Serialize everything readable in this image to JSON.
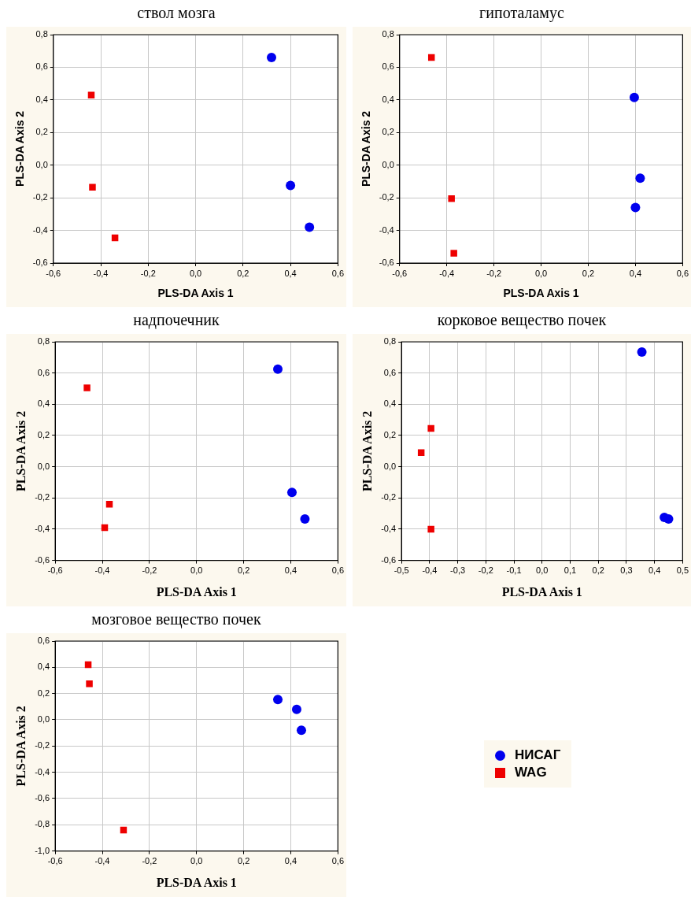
{
  "chart_data": [
    {
      "type": "scatter",
      "title": "ствол мозга",
      "xlabel": "PLS-DA Axis 1",
      "ylabel": "PLS-DA Axis 2",
      "xlim": [
        -0.6,
        0.6
      ],
      "ylim": [
        -0.6,
        0.8
      ],
      "xticks": [
        {
          "value": -0.6,
          "label": "-0,6"
        },
        {
          "value": -0.4,
          "label": "-0,4"
        },
        {
          "value": -0.2,
          "label": "-0,2"
        },
        {
          "value": 0,
          "label": "0,0"
        },
        {
          "value": 0.2,
          "label": "0,2"
        },
        {
          "value": 0.4,
          "label": "0,4"
        },
        {
          "value": 0.6,
          "label": "0,6"
        }
      ],
      "yticks": [
        {
          "value": -0.6,
          "label": "-0,6"
        },
        {
          "value": -0.4,
          "label": "-0,4"
        },
        {
          "value": -0.2,
          "label": "-0,2"
        },
        {
          "value": 0,
          "label": "0,0"
        },
        {
          "value": 0.2,
          "label": "0,2"
        },
        {
          "value": 0.4,
          "label": "0,4"
        },
        {
          "value": 0.6,
          "label": "0,6"
        },
        {
          "value": 0.8,
          "label": "0,8"
        }
      ],
      "grid": true,
      "series": [
        {
          "color": "#0000ee",
          "marker": "circle",
          "x": [
            0.32,
            0.4,
            0.48
          ],
          "values": [
            0.66,
            -0.125,
            -0.38
          ]
        },
        {
          "color": "#ee0000",
          "marker": "square",
          "x": [
            -0.44,
            -0.435,
            -0.34
          ],
          "values": [
            0.43,
            -0.135,
            -0.445
          ]
        }
      ]
    },
    {
      "type": "scatter",
      "title": "гипоталамус",
      "xlabel": "PLS-DA Axis 1",
      "ylabel": "PLS-DA Axis 2",
      "xlim": [
        -0.6,
        0.6
      ],
      "ylim": [
        -0.6,
        0.8
      ],
      "xticks": [
        {
          "value": -0.6,
          "label": "-0,6"
        },
        {
          "value": -0.4,
          "label": "-0,4"
        },
        {
          "value": -0.2,
          "label": "-0,2"
        },
        {
          "value": 0,
          "label": "0,0"
        },
        {
          "value": 0.2,
          "label": "0,2"
        },
        {
          "value": 0.4,
          "label": "0,4"
        },
        {
          "value": 0.6,
          "label": "0,6"
        }
      ],
      "yticks": [
        {
          "value": -0.6,
          "label": "-0,6"
        },
        {
          "value": -0.4,
          "label": "-0,4"
        },
        {
          "value": -0.2,
          "label": "-0,2"
        },
        {
          "value": 0,
          "label": "0,0"
        },
        {
          "value": 0.2,
          "label": "0,2"
        },
        {
          "value": 0.4,
          "label": "0,4"
        },
        {
          "value": 0.6,
          "label": "0,6"
        },
        {
          "value": 0.8,
          "label": "0,8"
        }
      ],
      "grid": true,
      "series": [
        {
          "color": "#0000ee",
          "marker": "circle",
          "x": [
            0.395,
            0.42,
            0.4
          ],
          "values": [
            0.415,
            -0.08,
            -0.26
          ]
        },
        {
          "color": "#ee0000",
          "marker": "square",
          "x": [
            -0.465,
            -0.38,
            -0.37
          ],
          "values": [
            0.66,
            -0.205,
            -0.54
          ]
        }
      ]
    },
    {
      "type": "scatter",
      "title": "надпочечник",
      "xlabel": "PLS-DA Axis 1",
      "ylabel": "PLS-DA Axis 2",
      "xlim": [
        -0.6,
        0.6
      ],
      "ylim": [
        -0.6,
        0.8
      ],
      "xticks": [
        {
          "value": -0.6,
          "label": "-0,6"
        },
        {
          "value": -0.4,
          "label": "-0,4"
        },
        {
          "value": -0.2,
          "label": "-0,2"
        },
        {
          "value": 0,
          "label": "0,0"
        },
        {
          "value": 0.2,
          "label": "0,2"
        },
        {
          "value": 0.4,
          "label": "0,4"
        },
        {
          "value": 0.6,
          "label": "0,6"
        }
      ],
      "yticks": [
        {
          "value": -0.6,
          "label": "-0,6"
        },
        {
          "value": -0.4,
          "label": "-0,4"
        },
        {
          "value": -0.2,
          "label": "-0,2"
        },
        {
          "value": 0,
          "label": "0,0"
        },
        {
          "value": 0.2,
          "label": "0,2"
        },
        {
          "value": 0.4,
          "label": "0,4"
        },
        {
          "value": 0.6,
          "label": "0,6"
        },
        {
          "value": 0.8,
          "label": "0,8"
        }
      ],
      "grid": true,
      "series": [
        {
          "color": "#0000ee",
          "marker": "circle",
          "x": [
            0.345,
            0.405,
            0.46
          ],
          "values": [
            0.625,
            -0.165,
            -0.335
          ]
        },
        {
          "color": "#ee0000",
          "marker": "square",
          "x": [
            -0.465,
            -0.37,
            -0.39
          ],
          "values": [
            0.505,
            -0.24,
            -0.39
          ]
        }
      ]
    },
    {
      "type": "scatter",
      "title": "корковое вещество почек",
      "xlabel": "PLS-DA Axis 1",
      "ylabel": "PLS-DA Axis 2",
      "xlim": [
        -0.5,
        0.5
      ],
      "ylim": [
        -0.6,
        0.8
      ],
      "xticks": [
        {
          "value": -0.5,
          "label": "-0,5"
        },
        {
          "value": -0.4,
          "label": "-0,4"
        },
        {
          "value": -0.3,
          "label": "-0,3"
        },
        {
          "value": -0.2,
          "label": "-0,2"
        },
        {
          "value": -0.1,
          "label": "-0,1"
        },
        {
          "value": 0,
          "label": "0,0"
        },
        {
          "value": 0.1,
          "label": "0,1"
        },
        {
          "value": 0.2,
          "label": "0,2"
        },
        {
          "value": 0.3,
          "label": "0,3"
        },
        {
          "value": 0.4,
          "label": "0,4"
        },
        {
          "value": 0.5,
          "label": "0,5"
        }
      ],
      "yticks": [
        {
          "value": -0.6,
          "label": "-0,6"
        },
        {
          "value": -0.4,
          "label": "-0,4"
        },
        {
          "value": -0.2,
          "label": "-0,2"
        },
        {
          "value": 0,
          "label": "0,0"
        },
        {
          "value": 0.2,
          "label": "0,2"
        },
        {
          "value": 0.4,
          "label": "0,4"
        },
        {
          "value": 0.6,
          "label": "0,6"
        },
        {
          "value": 0.8,
          "label": "0,8"
        }
      ],
      "grid": true,
      "series": [
        {
          "color": "#0000ee",
          "marker": "circle",
          "x": [
            0.355,
            0.435,
            0.45
          ],
          "values": [
            0.735,
            -0.325,
            -0.335
          ]
        },
        {
          "color": "#ee0000",
          "marker": "square",
          "x": [
            -0.43,
            -0.395,
            -0.395
          ],
          "values": [
            0.09,
            0.245,
            -0.4
          ]
        }
      ]
    },
    {
      "type": "scatter",
      "title": "мозговое вещество почек",
      "xlabel": "PLS-DA Axis 1",
      "ylabel": "PLS-DA Axis 2",
      "xlim": [
        -0.6,
        0.6
      ],
      "ylim": [
        -1.0,
        0.6
      ],
      "xticks": [
        {
          "value": -0.6,
          "label": "-0,6"
        },
        {
          "value": -0.4,
          "label": "-0,4"
        },
        {
          "value": -0.2,
          "label": "-0,2"
        },
        {
          "value": 0,
          "label": "0,0"
        },
        {
          "value": 0.2,
          "label": "0,2"
        },
        {
          "value": 0.4,
          "label": "0,4"
        },
        {
          "value": 0.6,
          "label": "0,6"
        }
      ],
      "yticks": [
        {
          "value": -1.0,
          "label": "-1,0"
        },
        {
          "value": -0.8,
          "label": "-0,8"
        },
        {
          "value": -0.6,
          "label": "-0,6"
        },
        {
          "value": -0.4,
          "label": "-0,4"
        },
        {
          "value": -0.2,
          "label": "-0,2"
        },
        {
          "value": 0,
          "label": "0,0"
        },
        {
          "value": 0.2,
          "label": "0,2"
        },
        {
          "value": 0.4,
          "label": "0,4"
        },
        {
          "value": 0.6,
          "label": "0,6"
        }
      ],
      "grid": true,
      "legend": "right",
      "series": [
        {
          "name": "НИСАГ",
          "color": "#0000ee",
          "marker": "circle",
          "x": [
            0.345,
            0.425,
            0.445
          ],
          "values": [
            0.155,
            0.08,
            -0.08
          ]
        },
        {
          "name": "WAG",
          "color": "#ee0000",
          "marker": "square",
          "x": [
            -0.46,
            -0.455,
            -0.31
          ],
          "values": [
            0.42,
            0.275,
            -0.84
          ]
        }
      ]
    }
  ]
}
